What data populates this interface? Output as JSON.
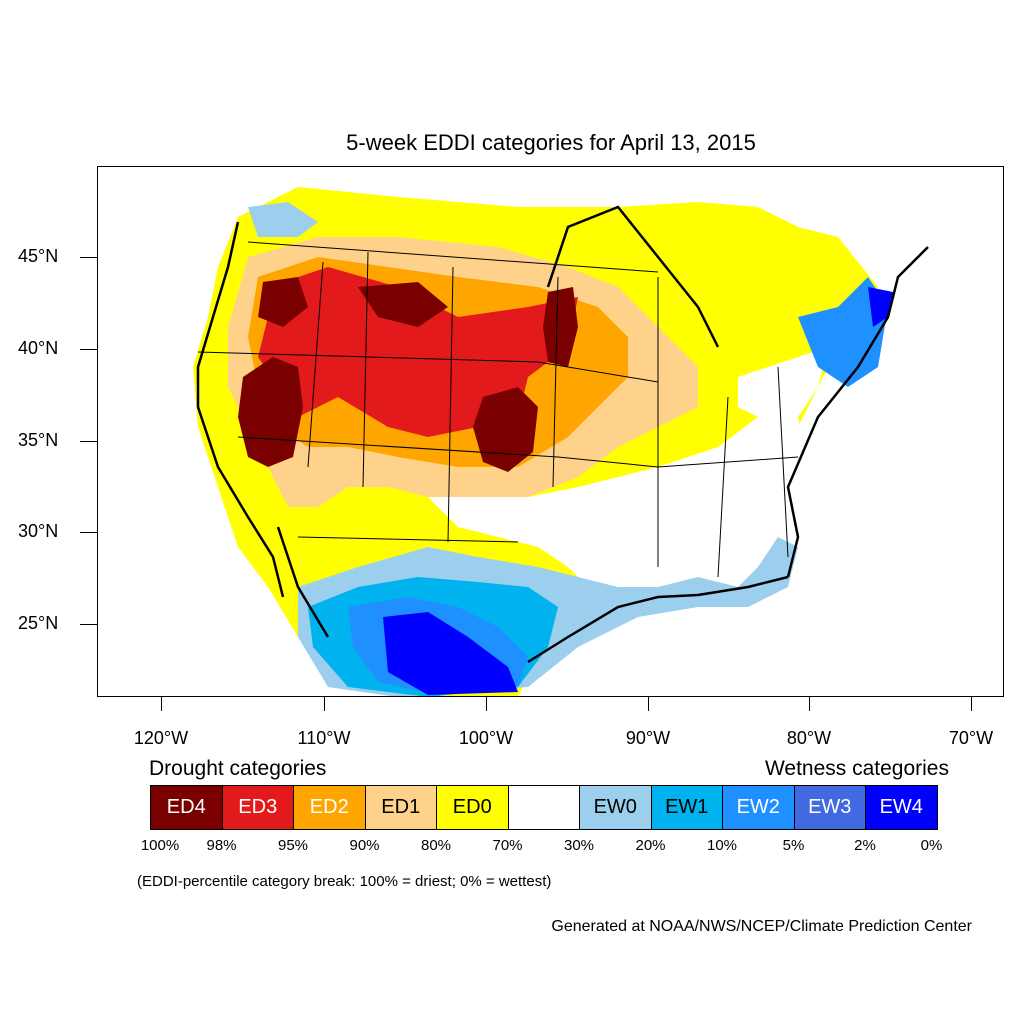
{
  "title": "5-week EDDI categories for April 13, 2015",
  "axes": {
    "lat_labels": [
      "45°N",
      "40°N",
      "35°N",
      "30°N",
      "25°N"
    ],
    "lon_labels": [
      "120°W",
      "110°W",
      "100°W",
      "90°W",
      "80°W",
      "70°W"
    ]
  },
  "legend": {
    "drought_heading": "Drought categories",
    "wetness_heading": "Wetness categories",
    "categories": [
      {
        "label": "ED4",
        "color": "#7a0000",
        "text_color": "#ffffff"
      },
      {
        "label": "ED3",
        "color": "#e31a1c",
        "text_color": "#ffffff"
      },
      {
        "label": "ED2",
        "color": "#ffa500",
        "text_color": "#ffffff"
      },
      {
        "label": "ED1",
        "color": "#ffd28c",
        "text_color": "#000000"
      },
      {
        "label": "ED0",
        "color": "#ffff00",
        "text_color": "#000000"
      },
      {
        "label": "",
        "color": "#ffffff",
        "text_color": "#000000"
      },
      {
        "label": "EW0",
        "color": "#9ccfee",
        "text_color": "#000000"
      },
      {
        "label": "EW1",
        "color": "#00b2ee",
        "text_color": "#000000"
      },
      {
        "label": "EW2",
        "color": "#1e90ff",
        "text_color": "#ffffff"
      },
      {
        "label": "EW3",
        "color": "#4169e1",
        "text_color": "#ffffff"
      },
      {
        "label": "EW4",
        "color": "#0000ff",
        "text_color": "#ffffff"
      }
    ],
    "breaks": [
      "100%",
      "98%",
      "95%",
      "90%",
      "80%",
      "70%",
      "30%",
      "20%",
      "10%",
      "5%",
      "2%",
      "0%"
    ]
  },
  "note": "(EDDI-percentile category break: 100% = driest; 0% = wettest)",
  "credit": "Generated at NOAA/NWS/NCEP/Climate Prediction Center"
}
